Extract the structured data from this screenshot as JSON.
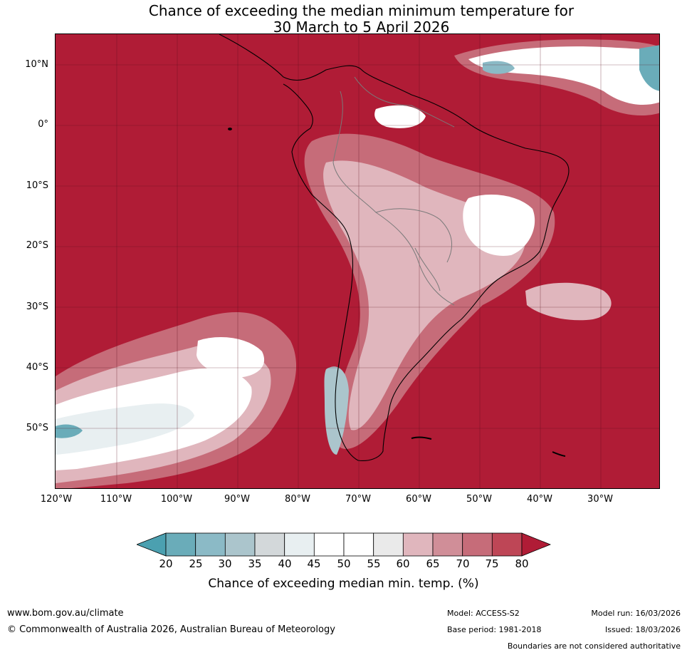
{
  "header": {
    "title_line1": "Chance of exceeding the median minimum temperature for",
    "title_line2": "30 March to 5 April 2026"
  },
  "map": {
    "region": "South America and surrounding oceans",
    "lat_labels": [
      "10°N",
      "0°",
      "10°S",
      "20°S",
      "30°S",
      "40°S",
      "50°S"
    ],
    "lon_labels": [
      "120°W",
      "110°W",
      "100°W",
      "90°W",
      "80°W",
      "70°W",
      "60°W",
      "50°W",
      "40°W",
      "30°W"
    ]
  },
  "colorbar": {
    "ticks": [
      "20",
      "25",
      "30",
      "35",
      "40",
      "45",
      "50",
      "55",
      "60",
      "65",
      "70",
      "75",
      "80"
    ],
    "title": "Chance of exceeding median min. temp. (%)",
    "colors": {
      "below_20": "#4ba0b0",
      "c20_25": "#6aacb9",
      "c25_30": "#8bbac6",
      "c30_35": "#abc5cc",
      "c35_40": "#d3d8da",
      "c40_45": "#e8eff1",
      "c45_50": "#ffffff",
      "c50_55": "#ffffff",
      "c55_60": "#eaeaea",
      "c60_65": "#e0b6bd",
      "c65_70": "#d08e98",
      "c70_75": "#c66c79",
      "c75_80": "#be4656",
      "above_80": "#b01c36"
    }
  },
  "footer": {
    "website": "www.bom.gov.au/climate",
    "copyright": "© Commonwealth of Australia 2026, Australian Bureau of Meteorology",
    "model": "Model: ACCESS-S2",
    "base_period": "Base period: 1981-2018",
    "model_run": "Model run: 16/03/2026",
    "issued": "Issued: 18/03/2026",
    "disclaimer": "Boundaries are not considered authoritative"
  }
}
